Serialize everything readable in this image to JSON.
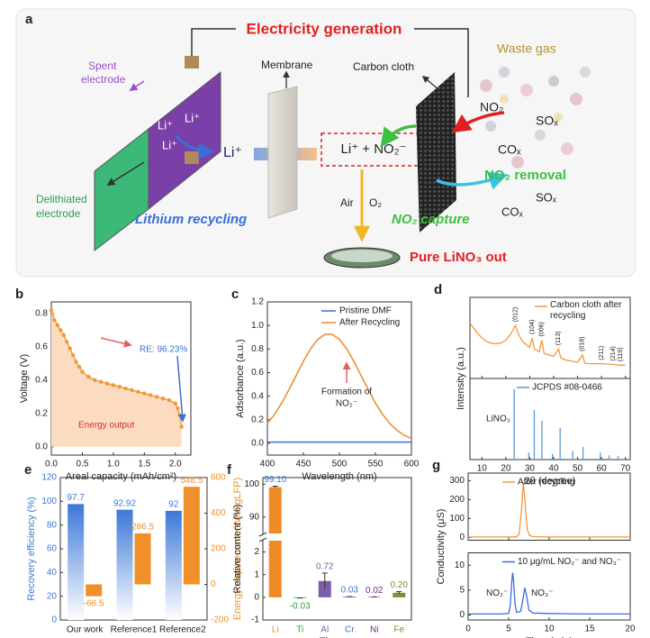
{
  "diagram": {
    "panel": "a",
    "title": "Electricity generation",
    "spent_electrode": [
      "Spent",
      "electrode"
    ],
    "delithiated_electrode": [
      "Delithiated",
      "electrode"
    ],
    "electrode_ions": [
      "Li⁺",
      "Li⁺",
      "Li⁺"
    ],
    "lithium_ion": "Li⁺",
    "membrane": "Membrane",
    "carbon_cloth": "Carbon cloth",
    "waste_gas": "Waste gas",
    "gases_in": [
      "NO₂",
      "SOₓ",
      "COₓ"
    ],
    "product_box": "Li⁺ + NO₂⁻",
    "air": "Air",
    "oxygen": "O₂",
    "lithium_recycling": "Lithium recycling",
    "no2_capture": "NO₂ capture",
    "no2_removal": "NO₂ removal",
    "gases_out": [
      "SOₓ",
      "COₓ"
    ],
    "product": "Pure LiNO₃ out"
  },
  "chart_data": [
    {
      "panel": "b",
      "type": "line",
      "xlabel": "Areal capacity (mAh/cm²)",
      "ylabel": "Voltage (V)",
      "xlim": [
        0,
        2.25
      ],
      "xticks": [
        {
          "value": 0,
          "label": "0.0"
        },
        {
          "value": 0.5,
          "label": "0.5"
        },
        {
          "value": 1,
          "label": "1.0"
        },
        {
          "value": 1.5,
          "label": "1.5"
        },
        {
          "value": 2,
          "label": "2.0"
        }
      ],
      "ylim": [
        -0.05,
        0.87
      ],
      "yticks": [
        {
          "value": 0,
          "label": "0.0"
        },
        {
          "value": 0.2,
          "label": "0.2"
        },
        {
          "value": 0.4,
          "label": "0.4"
        },
        {
          "value": 0.6,
          "label": "0.6"
        },
        {
          "value": 0.8,
          "label": "0.8"
        }
      ],
      "series": [
        {
          "color": "#ee9a3c",
          "fill_color": "#fcdcc0",
          "markers": true,
          "x": [
            0,
            0.05,
            0.1,
            0.15,
            0.2,
            0.25,
            0.3,
            0.35,
            0.4,
            0.45,
            0.5,
            0.6,
            0.7,
            0.8,
            0.9,
            1.0,
            1.1,
            1.2,
            1.3,
            1.4,
            1.5,
            1.6,
            1.7,
            1.8,
            1.9,
            2.0,
            2.04,
            2.07,
            2.1
          ],
          "values": [
            0.82,
            0.76,
            0.73,
            0.7,
            0.67,
            0.63,
            0.59,
            0.55,
            0.51,
            0.48,
            0.45,
            0.42,
            0.4,
            0.39,
            0.38,
            0.37,
            0.36,
            0.35,
            0.34,
            0.33,
            0.32,
            0.31,
            0.3,
            0.29,
            0.28,
            0.26,
            0.23,
            0.19,
            0.12
          ]
        }
      ],
      "annotations": [
        "RE: 96.23%",
        "Energy output"
      ]
    },
    {
      "panel": "c",
      "type": "line",
      "xlabel": "Wavelength (nm)",
      "ylabel": "Adsorbance (a.u.)",
      "xlim": [
        400,
        600
      ],
      "xticks": [
        400,
        450,
        500,
        550,
        600
      ],
      "ylim": [
        -0.1,
        1.2
      ],
      "yticks": [
        {
          "value": 0,
          "label": "0.0"
        },
        {
          "value": 0.2,
          "label": "0.2"
        },
        {
          "value": 0.4,
          "label": "0.4"
        },
        {
          "value": 0.6,
          "label": "0.6"
        },
        {
          "value": 0.8,
          "label": "0.8"
        },
        {
          "value": 1,
          "label": "1.0"
        },
        {
          "value": 1.2,
          "label": "1.2"
        }
      ],
      "legend": "upper right",
      "series": [
        {
          "name": "Pristine DMF",
          "color": "#3a6fd8",
          "x": [
            400,
            410,
            420,
            430,
            440,
            450,
            460,
            470,
            480,
            490,
            500,
            510,
            520,
            530,
            540,
            550,
            560,
            570,
            580,
            590,
            600
          ],
          "values": [
            0.01,
            0.01,
            0.01,
            0.01,
            0.01,
            0.01,
            0.01,
            0.01,
            0.01,
            0.01,
            0.01,
            0.01,
            0.01,
            0.01,
            0.01,
            0.01,
            0.01,
            0.01,
            0.01,
            0.01,
            0.01
          ]
        },
        {
          "name": "After Recycling",
          "color": "#ee8a2c",
          "x": [
            400,
            410,
            420,
            430,
            440,
            450,
            460,
            470,
            480,
            490,
            500,
            510,
            520,
            530,
            540,
            550,
            560,
            570,
            580,
            590,
            600
          ],
          "values": [
            0.168,
            0.246,
            0.342,
            0.455,
            0.576,
            0.696,
            0.802,
            0.882,
            0.925,
            0.925,
            0.882,
            0.802,
            0.696,
            0.576,
            0.455,
            0.342,
            0.246,
            0.168,
            0.11,
            0.068,
            0.041
          ]
        }
      ],
      "annotations": [
        "Formation of",
        "NO₂⁻"
      ]
    },
    {
      "panel": "d",
      "type": "stacked",
      "xlabel": "2θ (degree)",
      "ylabel": "Intensity (a.u.)",
      "xlim": [
        5,
        72
      ],
      "xticks": [
        10,
        20,
        30,
        40,
        50,
        60,
        70
      ],
      "subplots": [
        {
          "type": "line",
          "ylim": [
            0,
            1.1
          ],
          "series": [
            {
              "name": "Carbon cloth after recycling",
              "color": "#ee9a3c",
              "x": [
                5,
                8,
                10,
                12,
                15,
                18,
                20,
                22,
                23,
                24,
                25,
                27,
                30,
                31,
                32,
                34,
                35,
                36,
                40,
                42,
                43,
                45,
                50,
                52,
                53,
                55,
                60,
                65,
                68,
                70
              ],
              "values": [
                0.75,
                0.62,
                0.55,
                0.5,
                0.47,
                0.48,
                0.52,
                0.6,
                0.66,
                0.72,
                0.62,
                0.5,
                0.42,
                0.55,
                0.4,
                0.36,
                0.52,
                0.34,
                0.3,
                0.4,
                0.28,
                0.25,
                0.22,
                0.32,
                0.21,
                0.2,
                0.2,
                0.19,
                0.18,
                0.18
              ]
            }
          ],
          "peaks": [
            {
              "label": "(012)",
              "x": 24
            },
            {
              "label": "(104)",
              "x": 31
            },
            {
              "label": "(006)",
              "x": 35
            },
            {
              "label": "(113)",
              "x": 42
            },
            {
              "label": "(018)",
              "x": 52
            },
            {
              "label": "(211)",
              "x": 60
            },
            {
              "label": "(214)",
              "x": 65
            },
            {
              "label": "(119)",
              "x": 68
            }
          ]
        },
        {
          "type": "stem",
          "ylim": [
            0,
            1.15
          ],
          "label": "LiNO₃",
          "series": [
            {
              "name": "JCPDS #08-0466",
              "color": "#5b9bd5",
              "x": [
                23.5,
                29.6,
                31.9,
                35.1,
                39.5,
                42.7,
                48.0,
                52.3,
                59.5,
                63.2,
                66.9
              ],
              "values": [
                1.0,
                0.1,
                0.7,
                0.55,
                0.08,
                0.45,
                0.12,
                0.18,
                0.1,
                0.06,
                0.05
              ]
            }
          ]
        }
      ]
    },
    {
      "panel": "e",
      "type": "bar",
      "categories": [
        "Our work",
        "Reference1",
        "Reference2"
      ],
      "ylabel": "Recovery efficiency (%)",
      "y2label": "Energy requirement (Wh/kgLFP)",
      "ylim": [
        0,
        120
      ],
      "yticks": [
        0,
        20,
        40,
        60,
        80,
        100,
        120
      ],
      "y2lim": [
        -200,
        600
      ],
      "y2ticks": [
        -200,
        0,
        200,
        400,
        600
      ],
      "series": [
        {
          "color": "#3b78d8",
          "values": [
            97.7,
            92.92,
            92
          ]
        },
        {
          "color": "#f0902a",
          "axis": "y2",
          "values": [
            -66.5,
            286.5,
            548.5
          ]
        }
      ]
    },
    {
      "panel": "f",
      "type": "bar",
      "categories": [
        "Li",
        "Ti",
        "Al",
        "Cr",
        "Ni",
        "Fe"
      ],
      "xlabel": "Element",
      "ylabel": "Relative content (%)",
      "ylim": [
        -1,
        2.5
      ],
      "yticks": [
        -1,
        0,
        1,
        2
      ],
      "y_break": {
        "ylim": [
          85,
          102
        ],
        "yticks": [
          90,
          100
        ]
      },
      "values": [
        99.1,
        -0.03,
        0.72,
        0.03,
        0.02,
        0.2
      ],
      "value_labels": [
        "99.10",
        "-0.03",
        "0.72",
        "0.03",
        "0.02",
        "0.20"
      ],
      "errors": [
        0.3,
        0,
        0.35,
        0,
        0,
        0.05
      ],
      "colors": [
        "#f08a24",
        "#2ca02c",
        "#7b5ea7",
        "#3b6fb6",
        "#6a2b7a",
        "#8a8a30"
      ],
      "label_colors": [
        "#3b78d8",
        "#2ca02c",
        "#7b5ea7",
        "#3b78d8",
        "#6a2b7a",
        "#8a8a30"
      ]
    },
    {
      "panel": "g",
      "type": "stacked",
      "xlabel": "Time (min)",
      "ylabel": "Conductivity (μS)",
      "xlim": [
        0,
        20
      ],
      "xticks": [
        0,
        5,
        10,
        15,
        20
      ],
      "subplots": [
        {
          "type": "line",
          "ylim": [
            -15,
            340
          ],
          "yticks": [
            0,
            100,
            200,
            300
          ],
          "series": [
            {
              "name": "After recycling",
              "color": "#ee9a3c",
              "x": [
                0,
                2,
                4,
                5,
                6,
                6.3,
                6.6,
                6.8,
                7.0,
                7.3,
                7.6,
                8,
                10,
                12,
                15,
                20
              ],
              "values": [
                2,
                2,
                2,
                2,
                3,
                20,
                150,
                290,
                200,
                40,
                10,
                4,
                2,
                2,
                2,
                2
              ]
            }
          ]
        },
        {
          "type": "line",
          "ylim": [
            -1,
            12.5
          ],
          "yticks": [
            0,
            5,
            10
          ],
          "series": [
            {
              "name": "10 μg/mL NO₂⁻ and NO₃⁻",
              "color": "#3a6fd8",
              "x": [
                0,
                2,
                4,
                5,
                5.2,
                5.4,
                5.5,
                5.6,
                5.8,
                6.0,
                6.5,
                6.8,
                7.0,
                7.2,
                7.5,
                8,
                10,
                15,
                20
              ],
              "values": [
                0.2,
                0.2,
                0.2,
                0.3,
                2,
                7,
                8.5,
                7,
                2,
                0.5,
                0.8,
                3.5,
                5.5,
                4,
                1,
                0.4,
                0.3,
                0.2,
                0.2
              ]
            }
          ],
          "annotations": [
            "NO₂⁻",
            "NO₃⁻"
          ]
        }
      ]
    }
  ]
}
